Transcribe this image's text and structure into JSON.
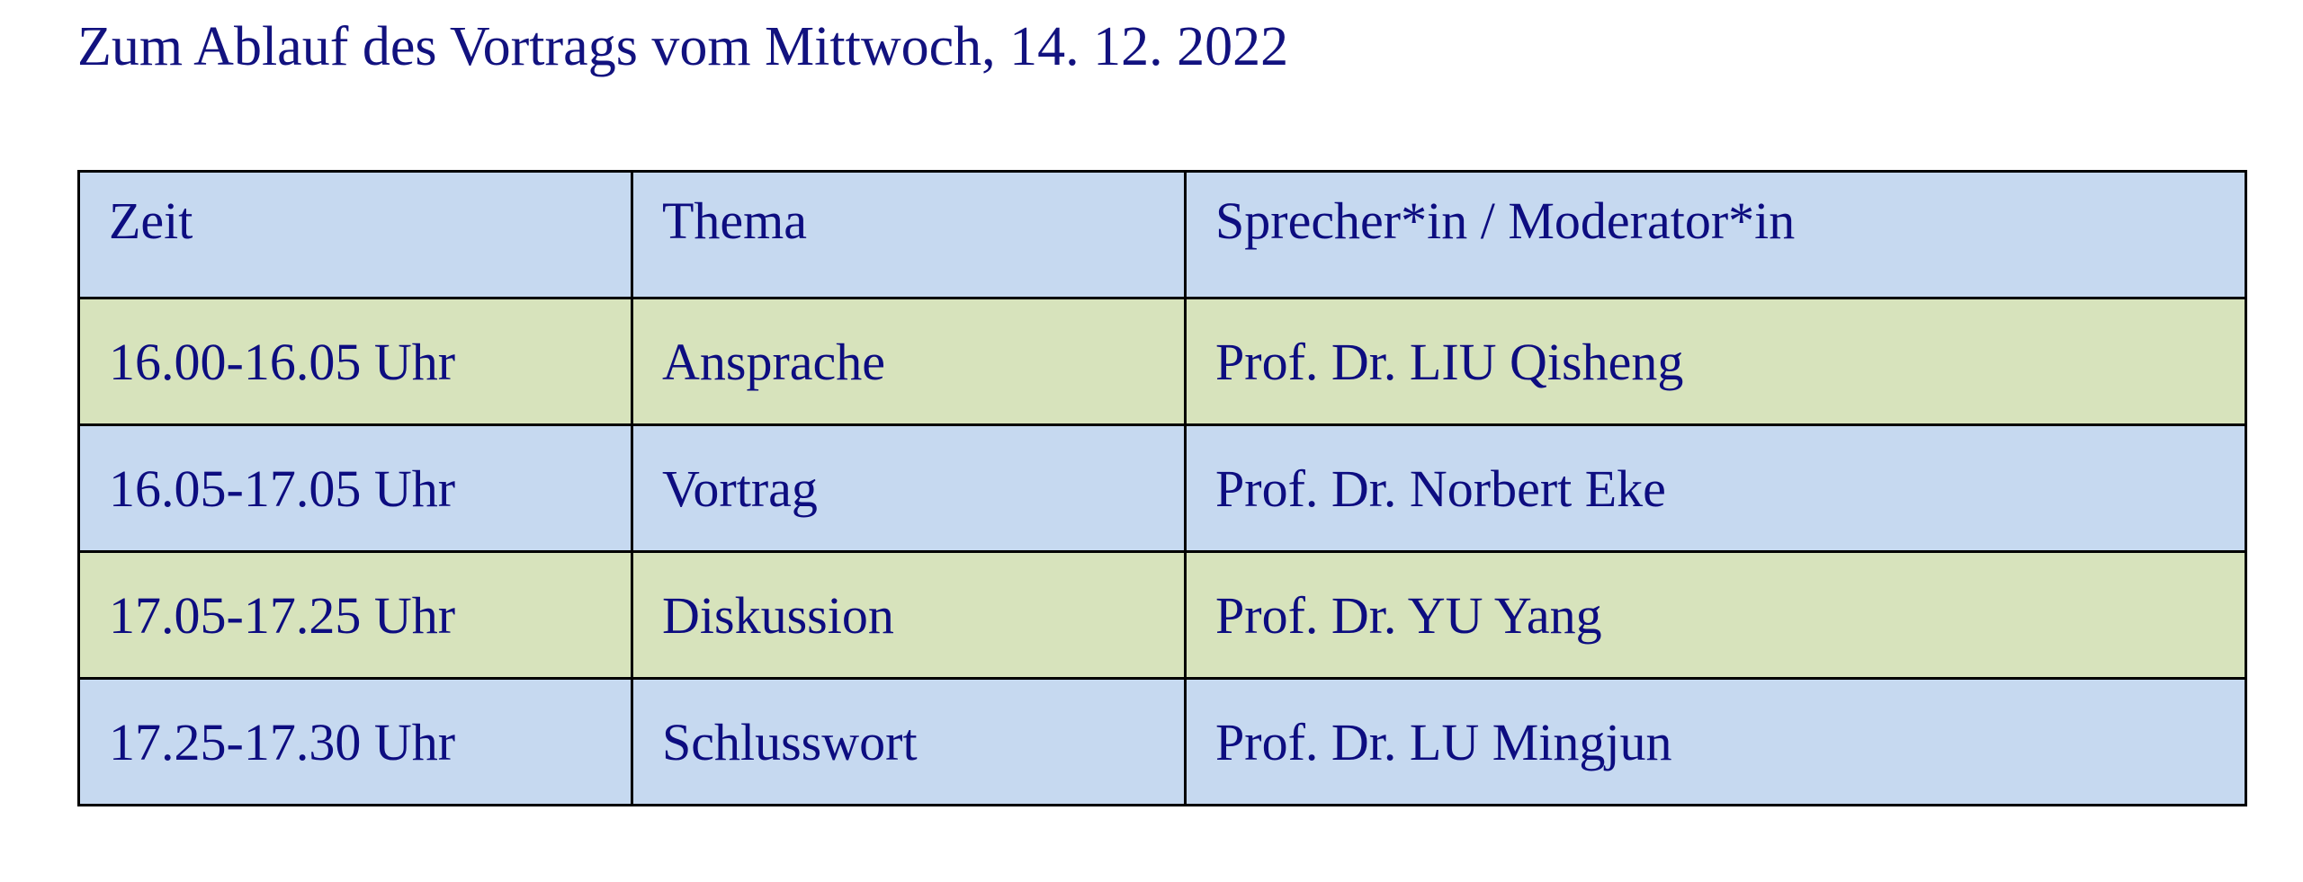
{
  "title": "Zum Ablauf des Vortrags vom Mittwoch, 14. 12. 2022",
  "colors": {
    "text": "#0d0d80",
    "header_bg": "#c6d9f0",
    "row_blue": "#c6d9f0",
    "row_green": "#d7e3bc",
    "border": "#000000"
  },
  "table": {
    "headers": [
      "Zeit",
      "Thema",
      "Sprecher*in / Moderator*in"
    ],
    "rows": [
      [
        "16.00-16.05 Uhr",
        "Ansprache",
        "Prof. Dr. LIU Qisheng"
      ],
      [
        "16.05-17.05 Uhr",
        "Vortrag",
        "Prof. Dr. Norbert Eke"
      ],
      [
        "17.05-17.25 Uhr",
        "Diskussion",
        "Prof. Dr. YU Yang"
      ],
      [
        "17.25-17.30 Uhr",
        "Schlusswort",
        "Prof. Dr. LU Mingjun"
      ]
    ]
  }
}
